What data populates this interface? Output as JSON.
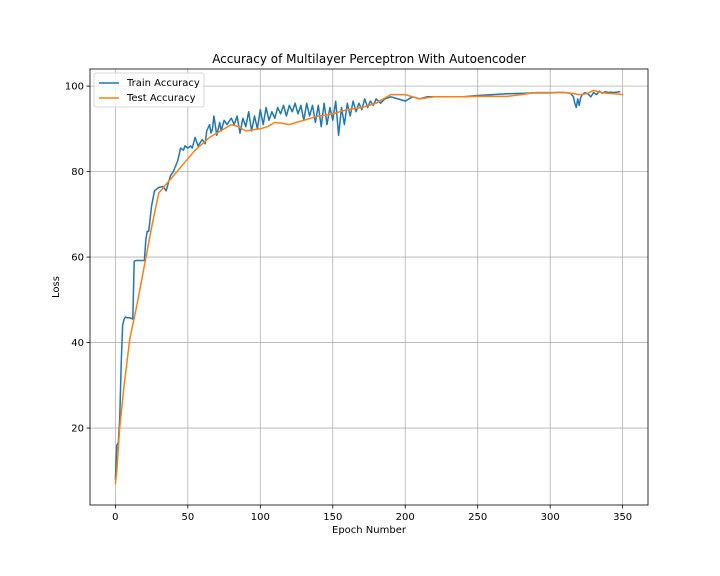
{
  "chart_data": {
    "type": "line",
    "title": "Accuracy of Multilayer Perceptron With Autoencoder",
    "xlabel": "Epoch Number",
    "ylabel": "Loss",
    "xlim": [
      -17.5,
      367.5
    ],
    "ylim": [
      2,
      104
    ],
    "xticks": [
      0,
      50,
      100,
      150,
      200,
      250,
      300,
      350
    ],
    "yticks": [
      20,
      40,
      60,
      80,
      100
    ],
    "grid": true,
    "legend_position": "top-left",
    "series": [
      {
        "name": "Train Accuracy",
        "color": "#1f77b4",
        "x": [
          0,
          1,
          2,
          3,
          4,
          5,
          6,
          7,
          8,
          10,
          12,
          13,
          14,
          16,
          20,
          21,
          22,
          23,
          25,
          27,
          30,
          33,
          35,
          38,
          40,
          43,
          45,
          47,
          48,
          50,
          52,
          53,
          55,
          57,
          60,
          62,
          63,
          65,
          66,
          67,
          68,
          70,
          72,
          73,
          75,
          77,
          80,
          82,
          84,
          86,
          88,
          90,
          92,
          94,
          96,
          98,
          100,
          102,
          104,
          106,
          108,
          110,
          112,
          114,
          116,
          118,
          120,
          122,
          124,
          126,
          128,
          130,
          132,
          134,
          136,
          138,
          140,
          142,
          144,
          146,
          148,
          150,
          152,
          154,
          156,
          158,
          160,
          162,
          164,
          166,
          168,
          170,
          172,
          174,
          176,
          178,
          180,
          183,
          186,
          190,
          195,
          200,
          205,
          210,
          215,
          220,
          225,
          230,
          240,
          250,
          260,
          270,
          280,
          290,
          300,
          305,
          310,
          314,
          316,
          317,
          318,
          319,
          320,
          321,
          322,
          324,
          326,
          328,
          330,
          332,
          334,
          336,
          338,
          340,
          342,
          344,
          346,
          348
        ],
        "values": [
          8,
          16,
          16.5,
          22,
          35,
          44,
          45.5,
          46,
          45.8,
          45.8,
          45.5,
          59,
          59.2,
          59.2,
          59.2,
          64,
          66,
          66,
          72,
          75.5,
          76.3,
          76.5,
          75.5,
          79,
          80,
          82.5,
          85.5,
          85,
          86,
          85.5,
          86,
          85.5,
          88,
          86,
          87.5,
          86.5,
          89.5,
          91,
          89,
          90,
          93,
          88.5,
          91.5,
          89.5,
          92,
          91,
          92.5,
          91,
          93,
          89,
          92.5,
          90.5,
          94,
          89.5,
          93,
          90,
          94.5,
          91,
          95,
          92,
          94,
          92.5,
          95,
          93.5,
          95.5,
          93,
          95.5,
          94,
          96,
          93.5,
          95.5,
          92,
          96,
          93,
          95.5,
          91.5,
          95.5,
          90.5,
          96,
          91,
          95,
          92,
          96.5,
          88.5,
          95,
          91,
          96,
          93,
          96.5,
          94,
          96,
          94.5,
          97,
          95,
          96.5,
          95.5,
          97,
          96,
          97,
          97.5,
          97,
          96.5,
          97.5,
          97,
          97.5,
          97.5,
          97.5,
          97.5,
          97.5,
          97.8,
          98,
          98.2,
          98.3,
          98.4,
          98.4,
          98.5,
          98.5,
          98.3,
          97.5,
          96,
          95,
          97,
          95.5,
          97.2,
          98,
          98.5,
          98.2,
          97.5,
          98.5,
          98,
          98.8,
          98.3,
          98.7,
          98.5,
          98.6,
          98.5,
          98.6,
          98.7
        ]
      },
      {
        "name": "Test Accuracy",
        "color": "#ff7f0e",
        "x": [
          0,
          1,
          3,
          6,
          10,
          15,
          20,
          25,
          30,
          35,
          40,
          45,
          50,
          55,
          60,
          65,
          70,
          75,
          80,
          85,
          90,
          95,
          100,
          105,
          110,
          115,
          120,
          125,
          130,
          135,
          140,
          145,
          150,
          155,
          160,
          170,
          180,
          185,
          190,
          195,
          200,
          205,
          210,
          220,
          230,
          240,
          250,
          260,
          270,
          280,
          290,
          300,
          310,
          315,
          320,
          325,
          330,
          335,
          340,
          345,
          350
        ],
        "values": [
          7,
          10,
          20,
          30,
          41,
          49,
          58,
          67,
          75,
          77,
          79,
          81,
          83,
          85,
          86.5,
          88,
          89,
          90,
          91,
          90.5,
          89.5,
          89.8,
          90,
          90.5,
          91.5,
          91.3,
          91,
          91.5,
          92,
          92.5,
          93,
          93.2,
          93.5,
          94,
          94.5,
          95,
          96,
          97,
          98,
          98,
          98,
          97.5,
          97,
          97.5,
          97.5,
          97.5,
          97.6,
          97.6,
          97.6,
          98,
          98.5,
          98.5,
          98.5,
          98.3,
          98,
          98.2,
          99,
          98.5,
          98.3,
          98.2,
          98
        ]
      }
    ]
  }
}
